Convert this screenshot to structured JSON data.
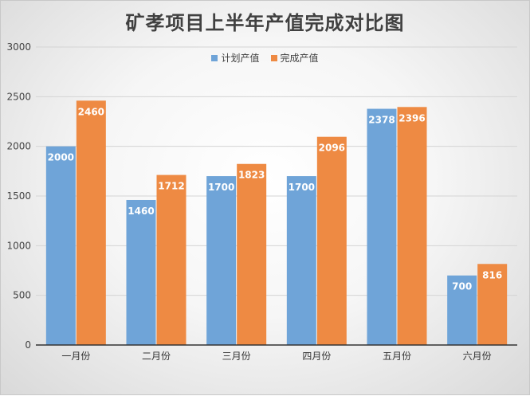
{
  "chart_data": {
    "type": "bar",
    "title": "矿孝项目上半年产值完成对比图",
    "categories": [
      "一月份",
      "二月份",
      "三月份",
      "四月份",
      "五月份",
      "六月份"
    ],
    "series": [
      {
        "name": "计划产值",
        "color": "#6fa4d8",
        "values": [
          2000,
          1460,
          1700,
          1700,
          2378,
          700
        ]
      },
      {
        "name": "完成产值",
        "color": "#ee8a43",
        "values": [
          2460,
          1712,
          1823,
          2096,
          2396,
          816
        ]
      }
    ],
    "ylim": [
      0,
      3000
    ],
    "yticks": [
      0,
      500,
      1000,
      1500,
      2000,
      2500,
      3000
    ],
    "xlabel": "",
    "ylabel": "",
    "grid": true,
    "legend_position": "top"
  }
}
